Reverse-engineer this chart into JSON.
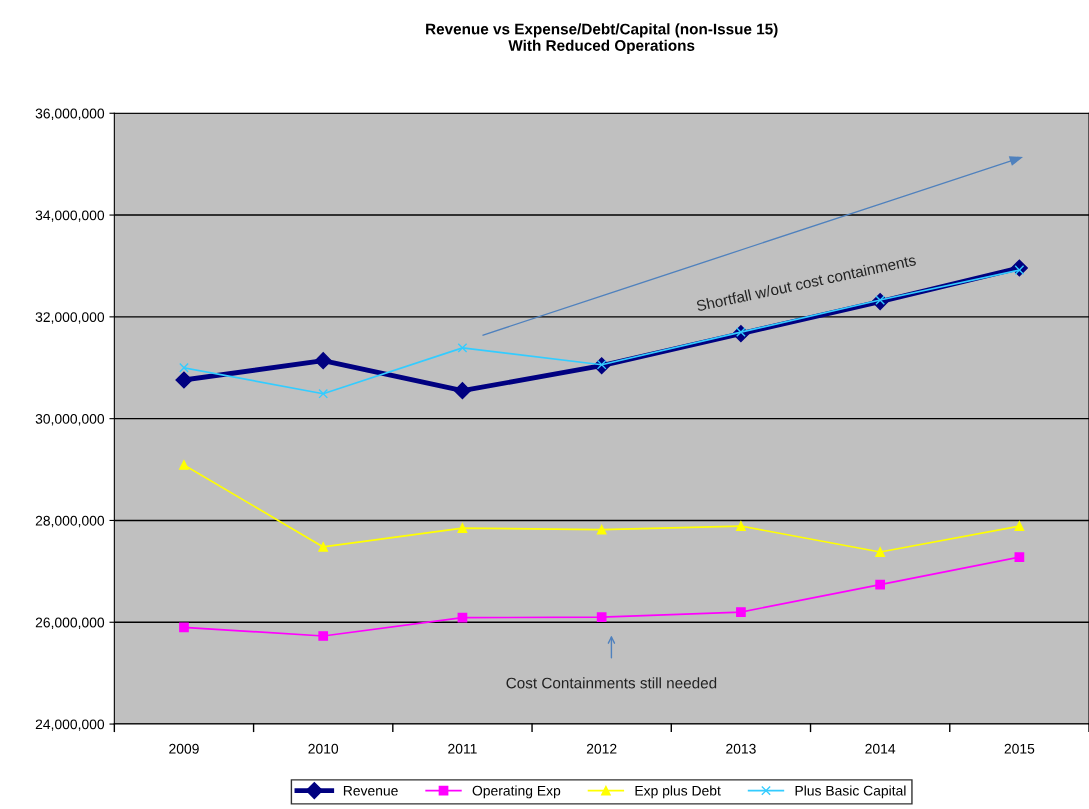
{
  "chart_data": {
    "type": "line",
    "title": "Revenue vs Expense/Debt/Capital (non-Issue 15)\nWith Reduced Operations",
    "categories": [
      "2009",
      "2010",
      "2011",
      "2012",
      "2013",
      "2014",
      "2015"
    ],
    "series": [
      {
        "name": "Revenue",
        "color": "#000080",
        "marker": "diamond",
        "values": [
          30760000,
          31140000,
          30550000,
          31040000,
          31670000,
          32300000,
          32960000
        ]
      },
      {
        "name": "Operating Exp",
        "color": "#ff00ff",
        "marker": "square",
        "values": [
          25900000,
          25730000,
          26090000,
          26100000,
          26200000,
          26740000,
          27280000
        ]
      },
      {
        "name": "Exp plus Debt",
        "color": "#ffff00",
        "marker": "triangle",
        "values": [
          29090000,
          27480000,
          27850000,
          27820000,
          27890000,
          27380000,
          27890000
        ]
      },
      {
        "name": "Plus Basic Capital",
        "color": "#33ccff",
        "marker": "cross",
        "values": [
          31000000,
          30490000,
          31390000,
          31060000,
          31700000,
          32330000,
          32920000
        ]
      }
    ],
    "ylim": [
      24000000,
      36000000
    ],
    "yticks": [
      {
        "value": 24000000,
        "label": "24,000,000"
      },
      {
        "value": 26000000,
        "label": "26,000,000"
      },
      {
        "value": 28000000,
        "label": "28,000,000"
      },
      {
        "value": 30000000,
        "label": "30,000,000"
      },
      {
        "value": 32000000,
        "label": "32,000,000"
      },
      {
        "value": 34000000,
        "label": "34,000,000"
      },
      {
        "value": 36000000,
        "label": "36,000,000"
      }
    ],
    "grid": "y",
    "legend": "bottom",
    "annotations": [
      "Shortfall w/out cost containments",
      "Cost Containments still needed"
    ]
  }
}
